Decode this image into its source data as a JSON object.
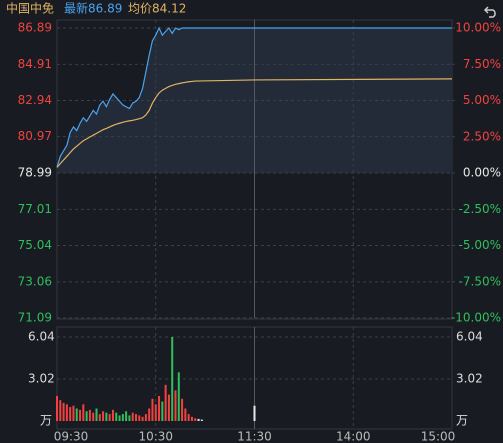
{
  "header": {
    "name": "中国中免",
    "latest": "最新86.89",
    "average": "均价84.12"
  },
  "chart_data": {
    "type": "line",
    "x": [
      0,
      2,
      4,
      6,
      8,
      10,
      12,
      14,
      16,
      18,
      20,
      22,
      24,
      26,
      28,
      30,
      32,
      34,
      36,
      38,
      40,
      42,
      44,
      46,
      48,
      50,
      52,
      54,
      56,
      58,
      60,
      62,
      64,
      66,
      68,
      70,
      72,
      74,
      76,
      78,
      80,
      82,
      84,
      120,
      240
    ],
    "series": [
      {
        "name": "最新",
        "color": "#4aa3f0",
        "values": [
          79.3,
          79.9,
          80.2,
          80.5,
          81.2,
          81.5,
          81.3,
          81.7,
          82.0,
          81.8,
          82.1,
          82.4,
          82.2,
          82.7,
          82.9,
          82.6,
          83.0,
          83.3,
          83.1,
          82.9,
          82.7,
          82.6,
          82.5,
          82.8,
          82.9,
          83.1,
          83.6,
          84.5,
          85.4,
          86.2,
          86.5,
          86.89,
          86.5,
          86.7,
          86.89,
          86.6,
          86.89,
          86.8,
          86.89,
          86.89,
          86.89,
          86.89,
          86.89,
          86.89,
          86.89
        ]
      },
      {
        "name": "均价",
        "color": "#e3b262",
        "values": [
          79.3,
          79.5,
          79.7,
          79.9,
          80.1,
          80.3,
          80.45,
          80.6,
          80.75,
          80.85,
          80.95,
          81.05,
          81.15,
          81.25,
          81.35,
          81.42,
          81.5,
          81.58,
          81.65,
          81.7,
          81.75,
          81.8,
          81.83,
          81.86,
          81.9,
          81.95,
          82.0,
          82.15,
          82.4,
          82.8,
          83.1,
          83.35,
          83.5,
          83.6,
          83.7,
          83.76,
          83.82,
          83.86,
          83.9,
          83.93,
          83.96,
          83.98,
          84.0,
          84.06,
          84.12
        ]
      }
    ],
    "xlim": [
      0,
      240
    ],
    "xticks": [
      {
        "value": 0,
        "label": "09:30"
      },
      {
        "value": 60,
        "label": "10:30"
      },
      {
        "value": 120,
        "label": "11:30"
      },
      {
        "value": 180,
        "label": "14:00"
      },
      {
        "value": 240,
        "label": "15:00"
      }
    ],
    "ylim": [
      71.09,
      86.89
    ],
    "yticks": [
      86.89,
      84.91,
      82.94,
      80.97,
      78.99,
      77.01,
      75.04,
      73.06,
      71.09
    ],
    "y2lim": [
      -10,
      10
    ],
    "y2ticks": [
      {
        "value": 10,
        "label": "10.00%"
      },
      {
        "value": 7.5,
        "label": "7.50%"
      },
      {
        "value": 5,
        "label": "5.00%"
      },
      {
        "value": 2.5,
        "label": "2.50%"
      },
      {
        "value": 0,
        "label": "0.00%"
      },
      {
        "value": -2.5,
        "label": "-2.50%"
      },
      {
        "value": -5,
        "label": "-5.00%"
      },
      {
        "value": -7.5,
        "label": "-7.50%"
      },
      {
        "value": -10,
        "label": "-10.00%"
      }
    ],
    "up_color": "#f0433f",
    "down_color": "#2fbf5c",
    "flat_color": "#e8e8e8",
    "volume": {
      "type": "bar",
      "unit": "万",
      "x": [
        0,
        2,
        4,
        6,
        8,
        10,
        12,
        14,
        16,
        18,
        20,
        22,
        24,
        26,
        28,
        30,
        32,
        34,
        36,
        38,
        40,
        42,
        44,
        46,
        48,
        50,
        52,
        54,
        56,
        58,
        60,
        62,
        64,
        66,
        68,
        70,
        72,
        74,
        76,
        78,
        80,
        82,
        84,
        86,
        88,
        120
      ],
      "values": [
        1.8,
        1.5,
        1.3,
        1.2,
        1.0,
        1.1,
        0.9,
        0.8,
        1.2,
        0.7,
        0.8,
        0.6,
        0.9,
        0.5,
        0.7,
        0.6,
        0.5,
        0.8,
        0.6,
        0.4,
        0.5,
        0.7,
        0.4,
        0.6,
        0.5,
        0.4,
        0.3,
        0.5,
        0.9,
        1.6,
        1.2,
        1.8,
        1.4,
        2.6,
        1.9,
        6.04,
        2.2,
        3.5,
        1.6,
        0.9,
        0.5,
        0.3,
        0.2,
        0.15,
        0.1,
        1.1
      ],
      "ylim": [
        0,
        6.04
      ],
      "yticks": [
        3.02,
        6.04
      ]
    }
  }
}
